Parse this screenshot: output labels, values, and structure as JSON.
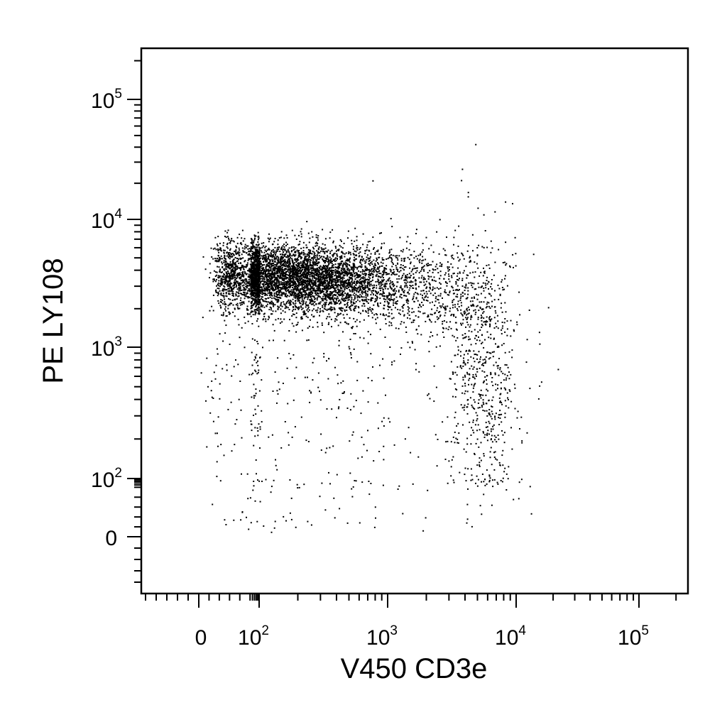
{
  "chart_data": {
    "type": "scatter",
    "title": "",
    "xlabel": "V450 CD3e",
    "ylabel": "PE LY108",
    "x_scale": "biexponential",
    "y_scale": "biexponential",
    "xlim": [
      -70,
      250000
    ],
    "ylim": [
      -60,
      250000
    ],
    "grid": false,
    "x_ticks": [
      {
        "value": 0,
        "base": "0",
        "exp": ""
      },
      {
        "value": 100,
        "base": "10",
        "exp": "2"
      },
      {
        "value": 1000,
        "base": "10",
        "exp": "3"
      },
      {
        "value": 10000,
        "base": "10",
        "exp": "4"
      },
      {
        "value": 100000,
        "base": "10",
        "exp": "5"
      }
    ],
    "y_ticks": [
      {
        "value": 0,
        "base": "0",
        "exp": ""
      },
      {
        "value": 100,
        "base": "10",
        "exp": "2"
      },
      {
        "value": 1000,
        "base": "10",
        "exp": "3"
      },
      {
        "value": 10000,
        "base": "10",
        "exp": "4"
      },
      {
        "value": 100000,
        "base": "10",
        "exp": "5"
      }
    ],
    "populations": [
      {
        "x_center": 80,
        "y_center": 3600,
        "x_spread": 0.2,
        "y_spread": 0.09,
        "count": 1700
      },
      {
        "x_center": 170,
        "y_center": 3600,
        "x_spread": 0.18,
        "y_spread": 0.09,
        "count": 1500
      },
      {
        "x_center": 380,
        "y_center": 3300,
        "x_spread": 0.16,
        "y_spread": 0.09,
        "count": 1500
      },
      {
        "x_center": 900,
        "y_center": 3300,
        "x_spread": 0.25,
        "y_spread": 0.12,
        "count": 700
      },
      {
        "x_center": 30,
        "y_center": 3800,
        "x_spread": 0.12,
        "y_spread": 0.12,
        "count": 350
      },
      {
        "x_center": 2500,
        "y_center": 2600,
        "x_spread": 0.18,
        "y_spread": 0.15,
        "count": 350
      },
      {
        "x_center": 5500,
        "y_center": 600,
        "x_spread": 0.1,
        "y_spread": 0.35,
        "count": 650
      },
      {
        "x_center": 200,
        "y_center": 600,
        "x_spread": 0.45,
        "y_spread": 0.35,
        "count": 350
      },
      {
        "x_center": 200,
        "y_center": 30,
        "x_spread": 0.45,
        "y_spread": 0.25,
        "count": 60
      }
    ]
  }
}
